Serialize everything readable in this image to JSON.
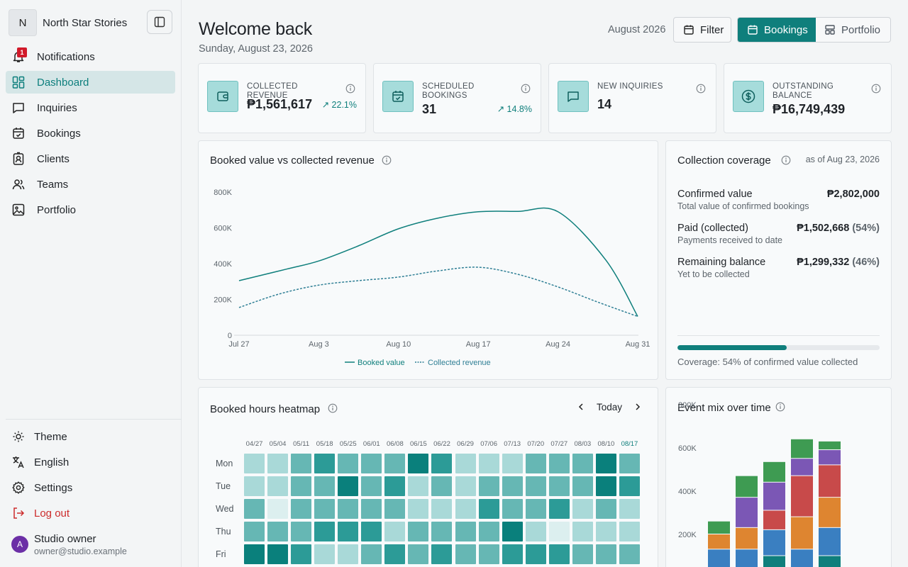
{
  "sidebar": {
    "brand_initial": "N",
    "brand_name": "North Star Stories",
    "nav": [
      {
        "label": "Notifications",
        "icon": "bell-icon",
        "badge": "1"
      },
      {
        "label": "Dashboard",
        "icon": "dashboard-icon",
        "active": true
      },
      {
        "label": "Inquiries",
        "icon": "message-icon"
      },
      {
        "label": "Bookings",
        "icon": "calendar-icon"
      },
      {
        "label": "Clients",
        "icon": "contact-icon"
      },
      {
        "label": "Teams",
        "icon": "users-icon"
      },
      {
        "label": "Portfolio",
        "icon": "image-icon"
      }
    ],
    "bottom": [
      {
        "label": "Theme",
        "icon": "sun-icon"
      },
      {
        "label": "English",
        "icon": "translate-icon"
      },
      {
        "label": "Settings",
        "icon": "gear-icon"
      },
      {
        "label": "Log out",
        "icon": "logout-icon"
      }
    ],
    "user": {
      "initial": "A",
      "name": "Studio owner",
      "email": "owner@studio.example"
    }
  },
  "header": {
    "title": "Welcome back",
    "date": "Sunday, August 23, 2026",
    "month": "August 2026",
    "filter_label": "Filter",
    "view_tabs": [
      "Bookings",
      "Portfolio"
    ]
  },
  "kpis": [
    {
      "label": "COLLECTED REVENUE",
      "value": "₱1,561,617",
      "delta": "22.1%"
    },
    {
      "label": "SCHEDULED BOOKINGS",
      "value": "31",
      "delta": "14.8%"
    },
    {
      "label": "NEW INQUIRIES",
      "value": "14",
      "delta": ""
    },
    {
      "label": "OUTSTANDING BALANCE",
      "value": "₱16,749,439",
      "delta": ""
    }
  ],
  "booked_chart": {
    "title": "Booked value vs collected revenue",
    "legend": [
      "Booked value",
      "Collected revenue"
    ],
    "colors": {
      "booked": "#0f7f7c",
      "collected": "#2f7f95"
    }
  },
  "coverage": {
    "title": "Collection coverage",
    "as_of": "as of Aug 23, 2026",
    "rows": [
      {
        "label": "Confirmed value",
        "sub": "Total value of confirmed bookings",
        "value": "₱2,802,000",
        "pct": ""
      },
      {
        "label": "Paid (collected)",
        "sub": "Payments received to date",
        "value": "₱1,502,668",
        "pct": "(54%)"
      },
      {
        "label": "Remaining balance",
        "sub": "Yet to be collected",
        "value": "₱1,299,332",
        "pct": "(46%)"
      }
    ],
    "progress": 0.54,
    "footer": "Coverage: 54% of confirmed value collected"
  },
  "heatmap": {
    "title": "Booked hours heatmap",
    "today_label": "Today",
    "weeks": [
      "04/27",
      "05/04",
      "05/11",
      "05/18",
      "05/25",
      "06/01",
      "06/08",
      "06/15",
      "06/22",
      "06/29",
      "07/06",
      "07/13",
      "07/20",
      "07/27",
      "08/03",
      "08/10",
      "08/17"
    ],
    "days": [
      "Mon",
      "Tue",
      "Wed",
      "Thu",
      "Fri"
    ],
    "levels": [
      [
        2,
        2,
        3,
        4,
        3,
        3,
        3,
        5,
        4,
        2,
        2,
        2,
        3,
        3,
        3,
        5,
        3
      ],
      [
        2,
        2,
        3,
        3,
        5,
        3,
        4,
        2,
        3,
        2,
        3,
        3,
        3,
        3,
        3,
        5,
        4
      ],
      [
        3,
        1,
        3,
        3,
        3,
        3,
        3,
        2,
        2,
        2,
        4,
        3,
        3,
        4,
        2,
        3,
        2
      ],
      [
        3,
        3,
        3,
        4,
        4,
        4,
        2,
        3,
        3,
        3,
        3,
        5,
        2,
        1,
        2,
        2,
        2
      ],
      [
        5,
        5,
        4,
        2,
        2,
        3,
        4,
        3,
        4,
        3,
        3,
        4,
        4,
        4,
        3,
        3,
        3
      ]
    ]
  },
  "chart_data": [
    {
      "type": "line",
      "title": "Booked value vs collected revenue",
      "x": [
        "Jul 27",
        "Aug 3",
        "Aug 10",
        "Aug 17",
        "Aug 24",
        "Aug 31"
      ],
      "yticks": [
        "0",
        "200K",
        "400K",
        "600K",
        "800K"
      ],
      "ylim": [
        0,
        800000
      ],
      "series": [
        {
          "name": "Booked value",
          "style": "solid",
          "points": [
            [
              0,
              305000
            ],
            [
              0.6,
              370000
            ],
            [
              1,
              415000
            ],
            [
              1.5,
              500000
            ],
            [
              2,
              595000
            ],
            [
              2.5,
              655000
            ],
            [
              3,
              690000
            ],
            [
              3.5,
              692000
            ],
            [
              4,
              690000
            ],
            [
              4.6,
              420000
            ],
            [
              5,
              105000
            ]
          ]
        },
        {
          "name": "Collected revenue",
          "style": "dashed",
          "points": [
            [
              0,
              155000
            ],
            [
              0.5,
              230000
            ],
            [
              1,
              280000
            ],
            [
              1.5,
              305000
            ],
            [
              2,
              325000
            ],
            [
              2.5,
              360000
            ],
            [
              3,
              380000
            ],
            [
              3.5,
              340000
            ],
            [
              4,
              270000
            ],
            [
              4.5,
              185000
            ],
            [
              5,
              105000
            ]
          ]
        }
      ]
    },
    {
      "type": "bar",
      "title": "Event mix over time",
      "stacked": true,
      "yticks": [
        "200K",
        "400K",
        "600K",
        "800K"
      ],
      "ylim": [
        0,
        800000
      ],
      "series": [
        {
          "color": "#0f7f7c",
          "values": [
            40000,
            40000,
            100000,
            30000,
            100000,
            40000
          ]
        },
        {
          "color": "#3a7fc1",
          "values": [
            90000,
            90000,
            120000,
            100000,
            130000,
            0
          ]
        },
        {
          "color": "#de8530",
          "values": [
            70000,
            100000,
            0,
            150000,
            140000,
            0
          ]
        },
        {
          "color": "#c84a4a",
          "values": [
            0,
            0,
            90000,
            190000,
            150000,
            0
          ]
        },
        {
          "color": "#7b57b5",
          "values": [
            0,
            140000,
            130000,
            80000,
            70000,
            0
          ]
        },
        {
          "color": "#3e9b52",
          "values": [
            60000,
            100000,
            95000,
            90000,
            40000,
            0
          ]
        }
      ]
    }
  ]
}
